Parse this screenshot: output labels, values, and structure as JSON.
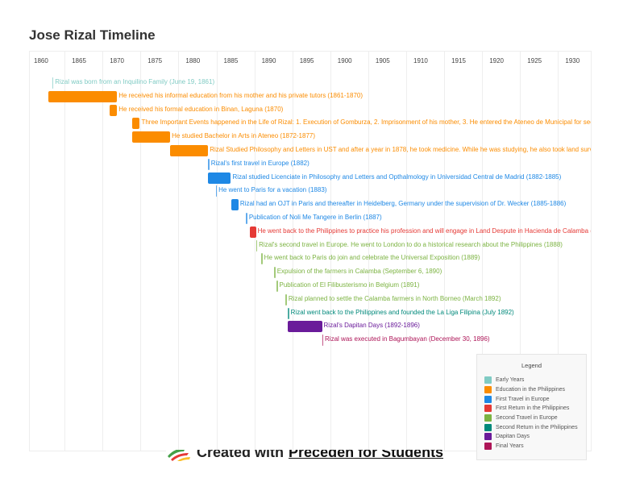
{
  "chart_data": {
    "type": "timeline",
    "title": "Jose Rizal Timeline",
    "xlim": [
      1860,
      1934
    ],
    "ticks": [
      "1860",
      "1865",
      "1870",
      "1875",
      "1880",
      "1885",
      "1890",
      "1895",
      "1900",
      "1905",
      "1910",
      "1915",
      "1920",
      "1925",
      "1930"
    ],
    "grid": true,
    "legend_placement": "bottom-right",
    "legend_title": "Legend",
    "categories": [
      {
        "name": "Early Years",
        "color": "#80cbc4"
      },
      {
        "name": "Education in the Philippines",
        "color": "#fb8c00"
      },
      {
        "name": "First Travel in Europe",
        "color": "#1e88e5"
      },
      {
        "name": "First Return in the Philippines",
        "color": "#e53935"
      },
      {
        "name": "Second Travel in Europe",
        "color": "#7cb342"
      },
      {
        "name": "Second Return in the Philippines",
        "color": "#00897b"
      },
      {
        "name": "Dapitan Days",
        "color": "#6a1b9a"
      },
      {
        "name": "Final Years",
        "color": "#ad1457"
      }
    ],
    "events": [
      {
        "label": "Rizal was born from an Inquilino Family (June 19, 1861)",
        "start": 1861.46,
        "end": 1861.46,
        "category": 0
      },
      {
        "label": "He received his informal education from his mother and his private tutors (1861-1870)",
        "start": 1861,
        "end": 1870,
        "category": 1
      },
      {
        "label": "He received his formal education in Binan, Laguna (1870)",
        "start": 1869,
        "end": 1870,
        "category": 1
      },
      {
        "label": "Three Important Events happened in the Life of Rizal: 1. Execution of Gomburza, 2. Imprisonment of his mother, 3. He entered the Ateneo de Municipal for seco",
        "start": 1872,
        "end": 1873,
        "category": 1
      },
      {
        "label": "He studied Bachelor in Arts in Ateneo (1872-1877)",
        "start": 1872,
        "end": 1877,
        "category": 1
      },
      {
        "label": "Rizal Studied Philosophy and Letters in UST and after a year in 1878, he took medicine. While he was studying, he also took land survey",
        "start": 1877,
        "end": 1882,
        "category": 1
      },
      {
        "label": "Rizal's first travel in Europe (1882)",
        "start": 1882,
        "end": 1882,
        "category": 2
      },
      {
        "label": "Rizal studied Licenciate in Philosophy and Letters and Opthalmology in Universidad Central de Madrid (1882-1885)",
        "start": 1882,
        "end": 1885,
        "category": 2
      },
      {
        "label": "He went to Paris for a vacation (1883)",
        "start": 1883,
        "end": 1883,
        "category": 2
      },
      {
        "label": "Rizal had an OJT in Paris and thereafter in Heidelberg, Germany under the supervision of Dr. Wecker (1885-1886)",
        "start": 1885,
        "end": 1886,
        "category": 2
      },
      {
        "label": "Publication of Noli Me Tangere in Berlin (1887)",
        "start": 1887,
        "end": 1887,
        "category": 2
      },
      {
        "label": "He went back to the Philippines to practice his profession and will engage in Land Despute in Hacienda de Calamba (A",
        "start": 1887.5,
        "end": 1888.3,
        "category": 3
      },
      {
        "label": "Rizal's second travel in Europe. He went to London to do a historical research about the Philippines (1888)",
        "start": 1888.3,
        "end": 1888.3,
        "category": 4
      },
      {
        "label": "He went back to Paris do join and celebrate the Universal Exposition (1889)",
        "start": 1889,
        "end": 1889,
        "category": 4
      },
      {
        "label": "Expulsion of the farmers in Calamba (September 6, 1890)",
        "start": 1890.7,
        "end": 1890.7,
        "category": 4
      },
      {
        "label": "Publication of El Filibusterismo in Belgium (1891)",
        "start": 1891,
        "end": 1891,
        "category": 4
      },
      {
        "label": "Rizal planned to settle the Calamba farmers in North Borneo (March 1892)",
        "start": 1892.2,
        "end": 1892.2,
        "category": 4
      },
      {
        "label": "Rizal went back to the Philippines and founded the La Liga Filipina (July 1892)",
        "start": 1892.5,
        "end": 1892.5,
        "category": 5
      },
      {
        "label": "Rizal's Dapitan Days (1892-1896)",
        "start": 1892.5,
        "end": 1897,
        "category": 6
      },
      {
        "label": "Rizal was executed in Bagumbayan (December 30, 1896)",
        "start": 1897,
        "end": 1897,
        "category": 7
      }
    ]
  },
  "footer": {
    "prefix": "Created with",
    "link": "Preceden for Students"
  }
}
